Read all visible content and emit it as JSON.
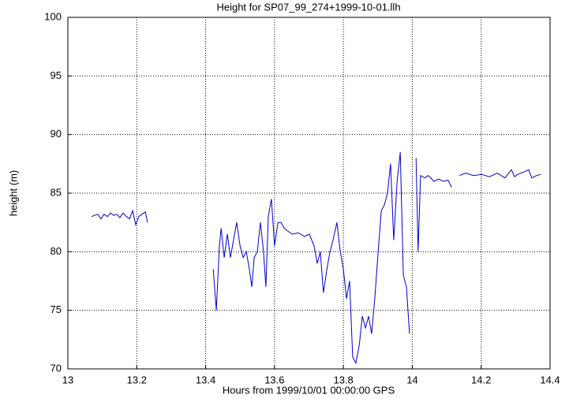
{
  "chart_data": {
    "type": "line",
    "title": "Height for SP07_99_274+1999-10-01.llh",
    "x_label": "Hours from 1999/10/01 00:00:00 GPS",
    "y_label": "height (m)",
    "grid": true,
    "xlim": [
      13,
      14.4
    ],
    "ylim": [
      70,
      100
    ],
    "xticks": [
      13,
      13.2,
      13.4,
      13.6,
      13.8,
      14,
      14.2,
      14.4
    ],
    "yticks": [
      70,
      75,
      80,
      85,
      90,
      95,
      100
    ],
    "x": [
      13.069,
      13.078,
      13.087,
      13.096,
      13.105,
      13.115,
      13.124,
      13.133,
      13.142,
      13.151,
      13.16,
      13.17,
      13.179,
      13.188,
      13.197,
      13.206,
      13.215,
      13.225,
      13.231,
      13.33,
      13.422,
      13.431,
      13.44,
      13.445,
      13.454,
      13.463,
      13.472,
      13.481,
      13.49,
      13.5,
      13.509,
      13.518,
      13.527,
      13.534,
      13.541,
      13.55,
      13.559,
      13.568,
      13.575,
      13.582,
      13.591,
      13.6,
      13.61,
      13.619,
      13.628,
      13.637,
      13.651,
      13.669,
      13.687,
      13.701,
      13.715,
      13.724,
      13.733,
      13.742,
      13.752,
      13.761,
      13.77,
      13.781,
      13.791,
      13.8,
      13.809,
      13.818,
      13.827,
      13.836,
      13.846,
      13.855,
      13.864,
      13.873,
      13.882,
      13.891,
      13.901,
      13.91,
      13.919,
      13.928,
      13.937,
      13.946,
      13.956,
      13.965,
      13.974,
      13.983,
      13.992,
      14.004,
      14.011,
      14.017,
      14.024,
      14.036,
      14.047,
      14.063,
      14.077,
      14.091,
      14.104,
      14.114,
      14.125,
      14.137,
      14.155,
      14.178,
      14.201,
      14.224,
      14.247,
      14.269,
      14.288,
      14.297,
      14.306,
      14.324,
      14.338,
      14.347,
      14.361,
      14.373
    ],
    "series": [
      {
        "color": "#0000cc",
        "values": [
          83,
          83.1,
          83.2,
          82.8,
          83.2,
          83,
          83.3,
          83.1,
          83.2,
          82.9,
          83.3,
          83,
          82.8,
          83.5,
          82.3,
          83,
          83.2,
          83.4,
          82.5,
          null,
          78.5,
          75,
          80.5,
          82,
          79.5,
          81.5,
          79.5,
          81,
          82.5,
          80.5,
          79.5,
          80,
          78.5,
          77,
          79.5,
          80,
          82.5,
          80,
          77,
          83,
          84.5,
          80.5,
          82.5,
          82.5,
          82,
          81.8,
          81.5,
          81.6,
          81.3,
          81.5,
          80.5,
          79,
          80,
          76.5,
          78.5,
          80,
          81,
          82.5,
          80,
          78.5,
          76,
          77.5,
          71,
          70.5,
          72,
          74.5,
          73.5,
          74.5,
          73,
          76,
          80,
          83.5,
          84,
          85,
          87.5,
          81,
          86,
          88.5,
          78,
          77,
          73,
          null,
          88,
          80,
          86.5,
          86.3,
          86.5,
          86,
          86.2,
          86,
          86.1,
          85.5,
          null,
          86.5,
          86.7,
          86.5,
          86.6,
          86.4,
          86.7,
          86.3,
          87,
          86.4,
          86.6,
          86.8,
          87,
          86.3,
          86.5,
          86.6
        ]
      }
    ]
  }
}
